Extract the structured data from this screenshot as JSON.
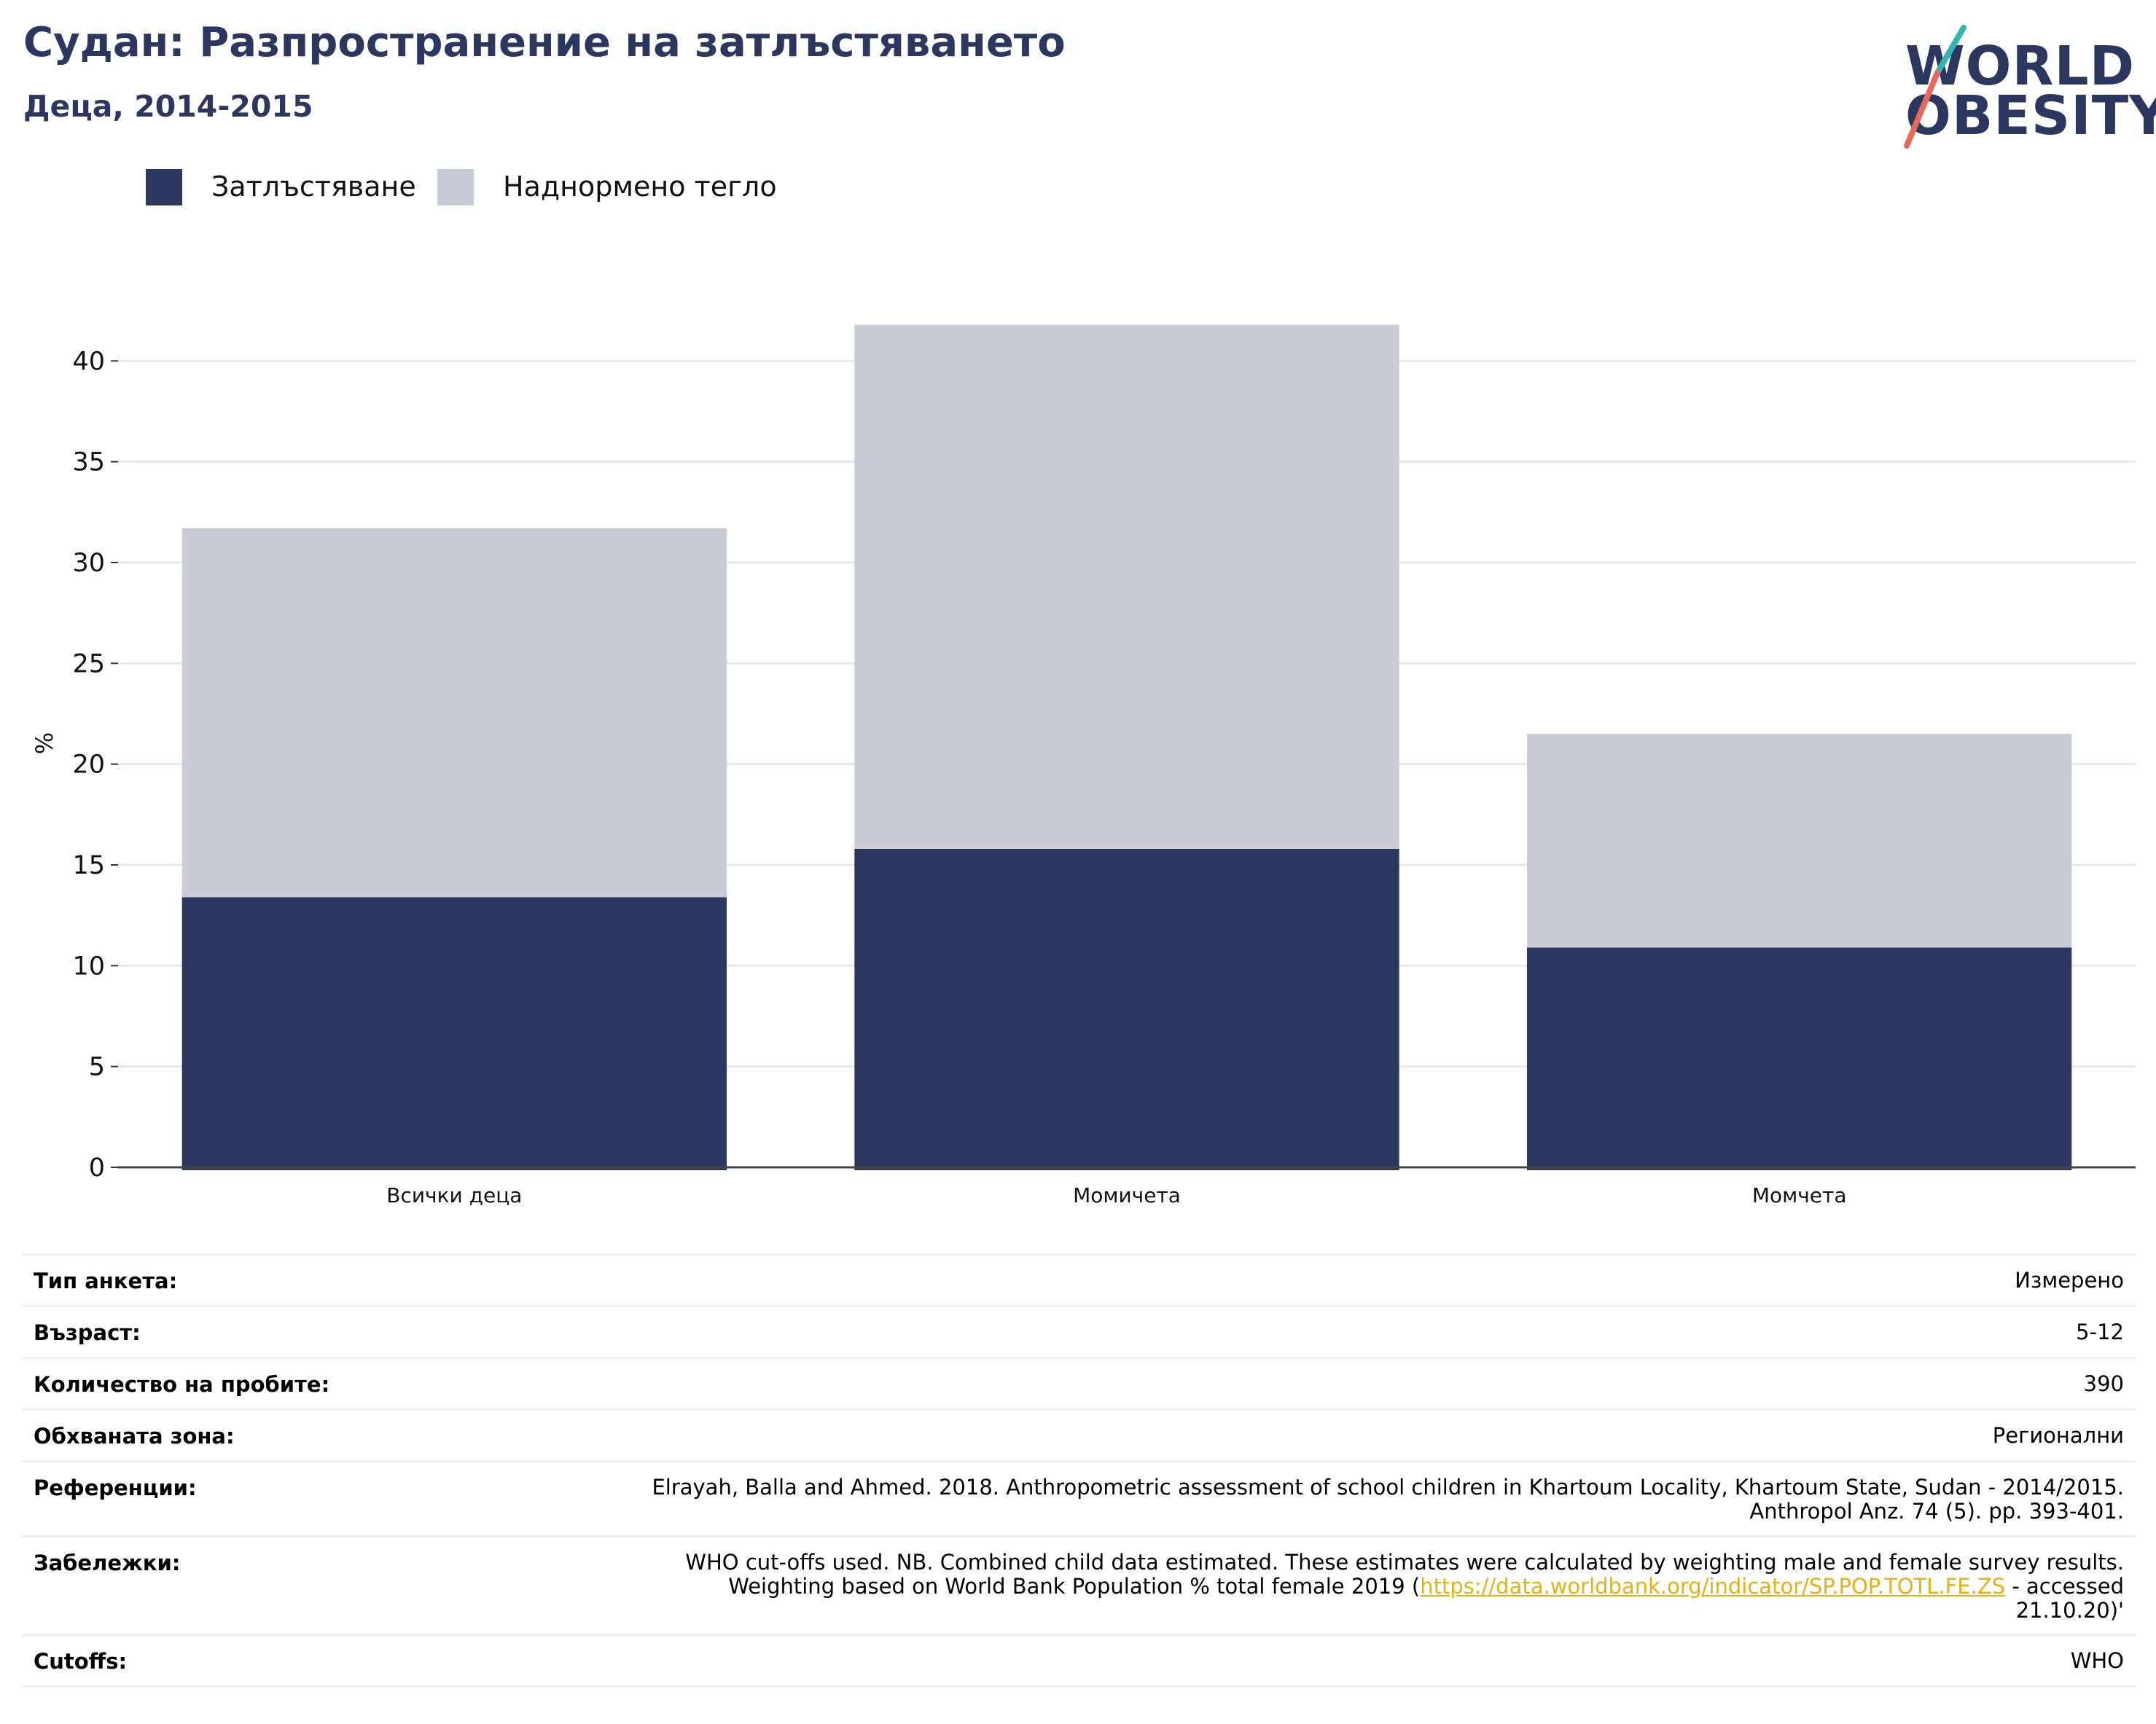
{
  "header": {
    "title": "Судан: Разпространение на затлъстяването",
    "subtitle": "Деца, 2014-2015"
  },
  "logo": {
    "line1": "WORLD",
    "line2": "OBESITY"
  },
  "colors": {
    "obesity": "#2b375f",
    "overweight": "#c9cbd7",
    "grid": "#e6e8ef",
    "link": "#e8b012",
    "logo_slash_top": "#33b5b0",
    "logo_slash_bottom": "#e8695c"
  },
  "legend": [
    {
      "label": "Затлъстяване",
      "color": "#2b375f"
    },
    {
      "label": "Наднормено тегло",
      "color": "#c9cbd7"
    }
  ],
  "chart_data": {
    "type": "bar",
    "stacked": true,
    "categories": [
      "Всички деца",
      "Момичета",
      "Момчета"
    ],
    "series": [
      {
        "name": "Затлъстяване",
        "values": [
          13.4,
          15.8,
          10.9
        ]
      },
      {
        "name": "Наднормено тегло",
        "values": [
          18.3,
          26.0,
          10.6
        ]
      }
    ],
    "ylabel": "%",
    "ylim": [
      0,
      42
    ],
    "yticks": [
      0,
      5,
      10,
      15,
      20,
      25,
      30,
      35,
      40
    ],
    "grid": true,
    "legend_position": "top-left"
  },
  "info": {
    "survey_type": {
      "label": "Тип анкета:",
      "value": "Измерено"
    },
    "age": {
      "label": "Възраст:",
      "value": "5-12"
    },
    "sample_size": {
      "label": "Количество на пробите:",
      "value": "390"
    },
    "area": {
      "label": "Обхваната зона:",
      "value": "Регионални"
    },
    "references": {
      "label": "Референции:",
      "line1": "Elrayah, Balla and Ahmed. 2018. Anthropometric assessment of school children in Khartoum Locality, Khartoum State, Sudan - 2014/2015.",
      "line2": "Anthropol Anz. 74 (5). pp. 393-401."
    },
    "notes": {
      "label": "Забележки:",
      "line1": "WHO cut-offs used. NB. Combined child data estimated. These estimates were calculated by weighting male and female survey results.",
      "line2_before": "Weighting based on World Bank Population % total female 2019 (",
      "link": "https://data.worldbank.org/indicator/SP.POP.TOTL.FE.ZS",
      "line2_after": " - accessed",
      "line3": "21.10.20)'"
    },
    "cutoffs": {
      "label": "Cutoffs:",
      "value": "WHO"
    }
  }
}
